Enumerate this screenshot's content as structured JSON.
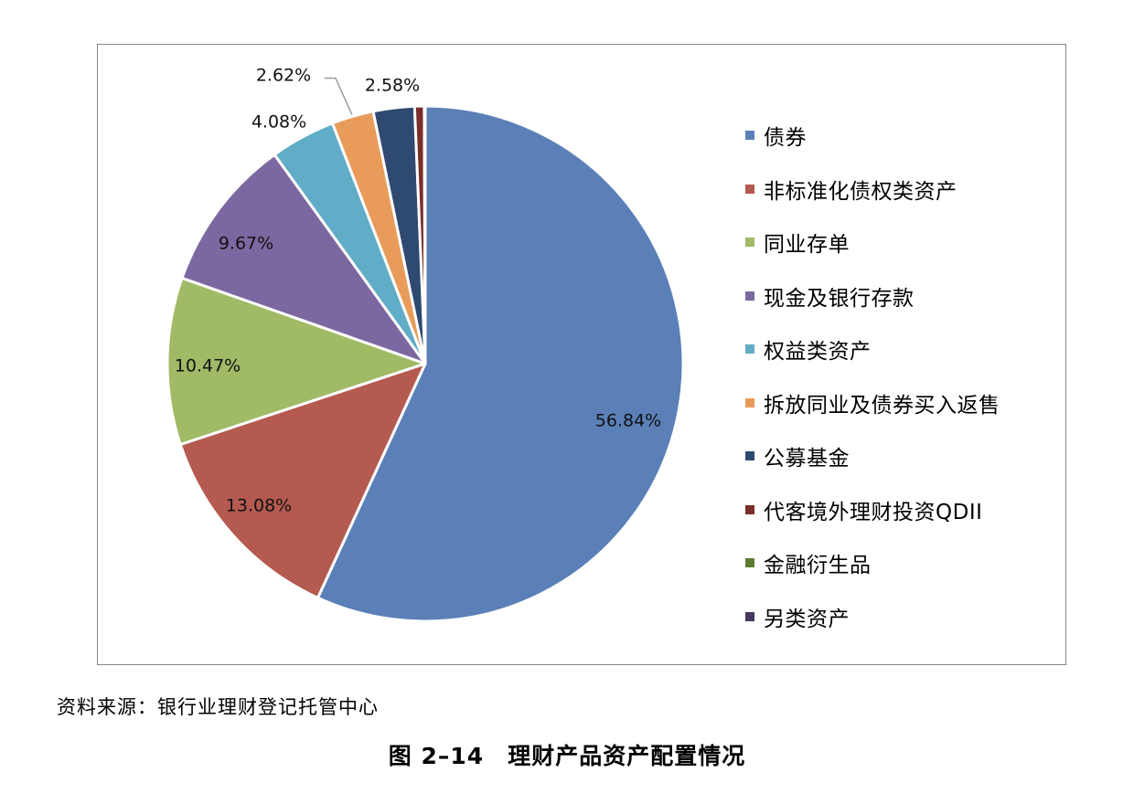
{
  "chart_data": {
    "type": "pie",
    "categories": [
      "债券",
      "非标准化债权类资产",
      "同业存单",
      "现金及银行存款",
      "权益类资产",
      "拆放同业及债券买入返售",
      "公募基金",
      "代客境外理财投资QDII",
      "金融衍生品",
      "另类资产"
    ],
    "values": [
      56.84,
      13.08,
      10.47,
      9.67,
      4.08,
      2.62,
      2.58,
      0.6,
      0.03,
      0.03
    ],
    "data_labels": [
      "56.84%",
      "13.08%",
      "10.47%",
      "9.67%",
      "4.08%",
      "2.62%",
      "2.58%",
      "",
      "",
      ""
    ],
    "colors": [
      "#5B80B8",
      "#B45A50",
      "#A0BA66",
      "#7C68A0",
      "#61ACC6",
      "#E99B5A",
      "#2F4A70",
      "#7A2E2A",
      "#5F7C34",
      "#46385E"
    ],
    "start_angle": "12 o'clock, clockwise",
    "legend_position": "right"
  },
  "source_note": "资料来源：银行业理财登记托管中心",
  "caption": {
    "number": "图 2–14",
    "title": "理财产品资产配置情况"
  }
}
